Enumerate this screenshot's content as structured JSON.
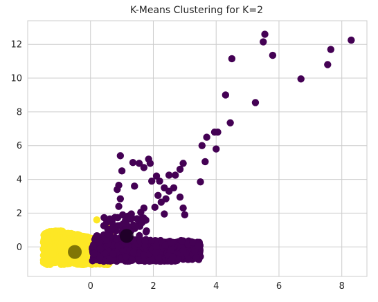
{
  "chart_data": {
    "type": "scatter",
    "title": "K-Means Clustering for K=2",
    "xlabel": "",
    "ylabel": "",
    "xlim": [
      -2.0,
      8.8
    ],
    "ylim": [
      -1.75,
      13.4
    ],
    "x_ticks": [
      0,
      2,
      4,
      6,
      8
    ],
    "y_ticks": [
      0,
      2,
      4,
      6,
      8,
      10,
      12
    ],
    "grid": true,
    "legend": "none",
    "style": {
      "grid_color": "#cccccc",
      "axis_color": "#cccccc",
      "cluster0_color": "#440154",
      "cluster1_color": "#fde725",
      "centroid0_color": "#1a0022",
      "centroid1_color": "#6b6200"
    },
    "series": [
      {
        "cluster": 0,
        "points": [
          [
            8.3,
            12.25
          ],
          [
            7.65,
            11.7
          ],
          [
            7.55,
            10.8
          ],
          [
            6.7,
            9.95
          ],
          [
            5.8,
            11.35
          ],
          [
            5.55,
            12.6
          ],
          [
            5.5,
            12.15
          ],
          [
            4.5,
            11.15
          ],
          [
            4.3,
            9.0
          ],
          [
            5.25,
            8.55
          ],
          [
            4.45,
            7.35
          ],
          [
            4.05,
            6.8
          ],
          [
            3.95,
            6.8
          ],
          [
            3.7,
            6.5
          ],
          [
            3.55,
            6.0
          ],
          [
            4.0,
            5.8
          ],
          [
            3.65,
            5.05
          ],
          [
            3.5,
            3.85
          ],
          [
            2.95,
            4.95
          ],
          [
            2.85,
            4.6
          ],
          [
            2.7,
            4.25
          ],
          [
            2.5,
            4.25
          ],
          [
            2.1,
            4.2
          ],
          [
            2.2,
            3.9
          ],
          [
            2.35,
            3.5
          ],
          [
            1.85,
            5.2
          ],
          [
            1.9,
            4.95
          ],
          [
            1.7,
            4.7
          ],
          [
            1.95,
            3.9
          ],
          [
            1.35,
            5.0
          ],
          [
            1.55,
            4.95
          ],
          [
            1.4,
            3.6
          ],
          [
            0.95,
            5.4
          ],
          [
            1.0,
            4.5
          ],
          [
            0.9,
            3.65
          ],
          [
            0.85,
            3.4
          ],
          [
            0.95,
            2.85
          ],
          [
            0.9,
            2.4
          ],
          [
            2.65,
            3.5
          ],
          [
            2.5,
            3.3
          ],
          [
            2.15,
            3.05
          ],
          [
            2.4,
            2.85
          ],
          [
            2.85,
            2.95
          ],
          [
            2.25,
            2.65
          ],
          [
            2.05,
            2.35
          ],
          [
            2.95,
            2.3
          ],
          [
            3.0,
            1.9
          ],
          [
            2.35,
            1.95
          ],
          [
            1.6,
            2.05
          ],
          [
            1.3,
            1.95
          ],
          [
            1.7,
            2.3
          ]
        ]
      },
      {
        "cluster": 1,
        "points": []
      }
    ],
    "centroids": [
      {
        "cluster": 0,
        "x": 1.15,
        "y": 0.65
      },
      {
        "cluster": 1,
        "x": -0.5,
        "y": -0.3
      }
    ]
  }
}
